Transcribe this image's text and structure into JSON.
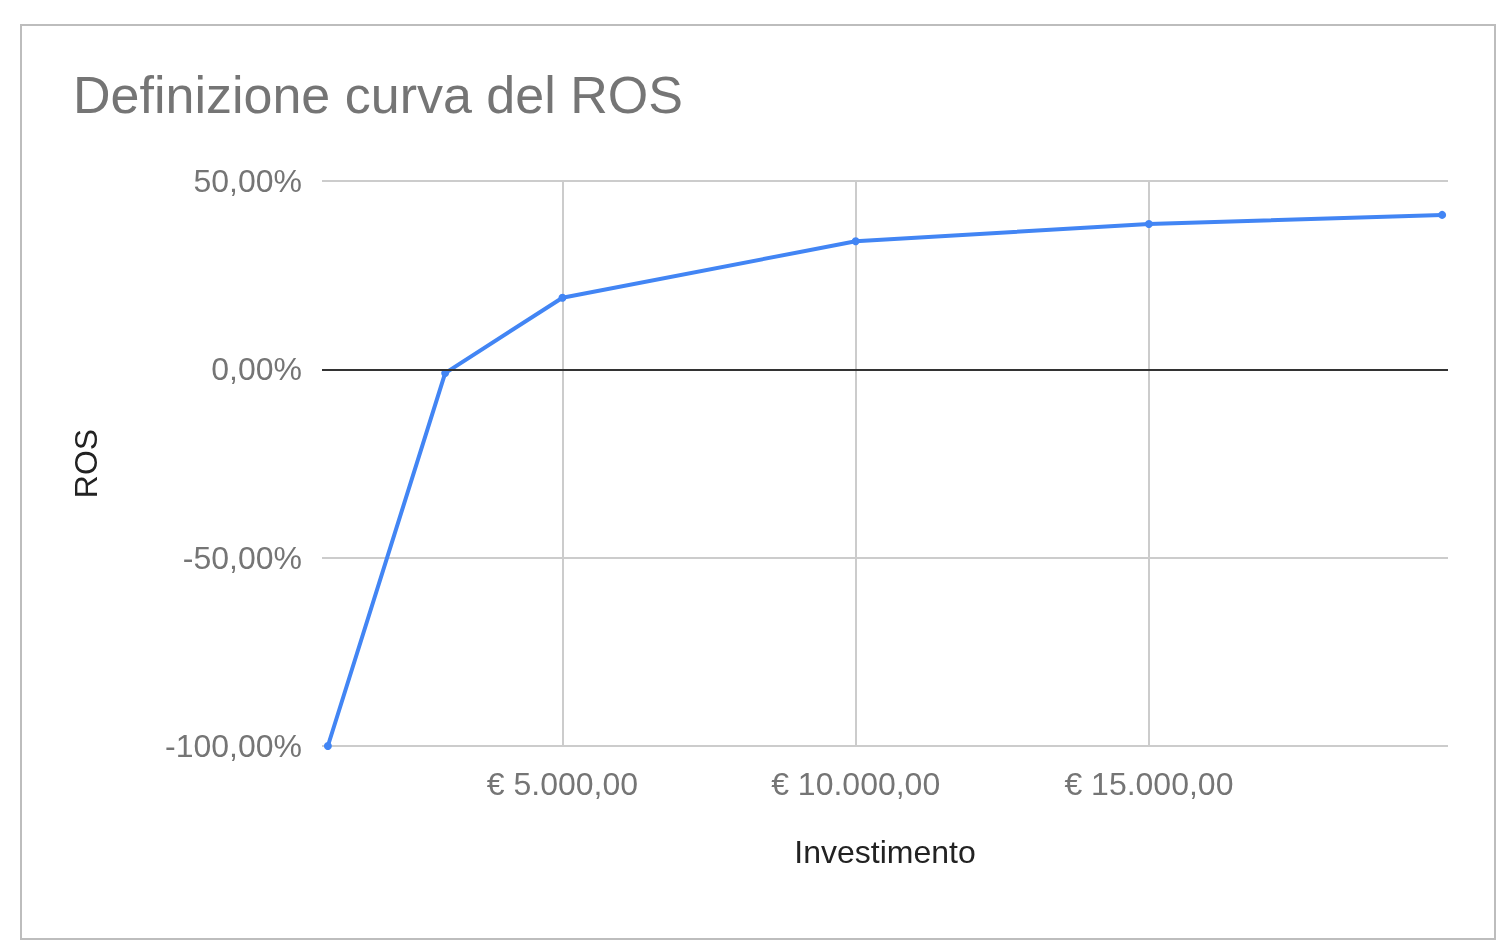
{
  "chart_data": {
    "type": "line",
    "title": "Definizione curva del ROS",
    "xlabel": "Investimento",
    "ylabel": "ROS",
    "x": [
      1000,
      3000,
      5000,
      10000,
      15000,
      20000
    ],
    "series": [
      {
        "color": "#4285f4",
        "values": [
          -100,
          -1,
          19,
          34,
          38.6,
          41
        ]
      }
    ],
    "xlim": [
      900,
      20100
    ],
    "xticks": [
      {
        "value": 5000,
        "label": "€ 5.000,00"
      },
      {
        "value": 10000,
        "label": "€ 10.000,00"
      },
      {
        "value": 15000,
        "label": "€ 15.000,00"
      }
    ],
    "ylim": [
      -100,
      50
    ],
    "yticks": [
      {
        "value": -100,
        "label": "-100,00%"
      },
      {
        "value": -50,
        "label": "-50,00%"
      },
      {
        "value": 0,
        "label": "0,00%"
      },
      {
        "value": 50,
        "label": "50,00%"
      }
    ],
    "ref_lines": [
      {
        "axis": "y",
        "value": 0,
        "color": "#333333"
      }
    ],
    "grid": true,
    "marker": "circle",
    "line_style": "solid"
  }
}
